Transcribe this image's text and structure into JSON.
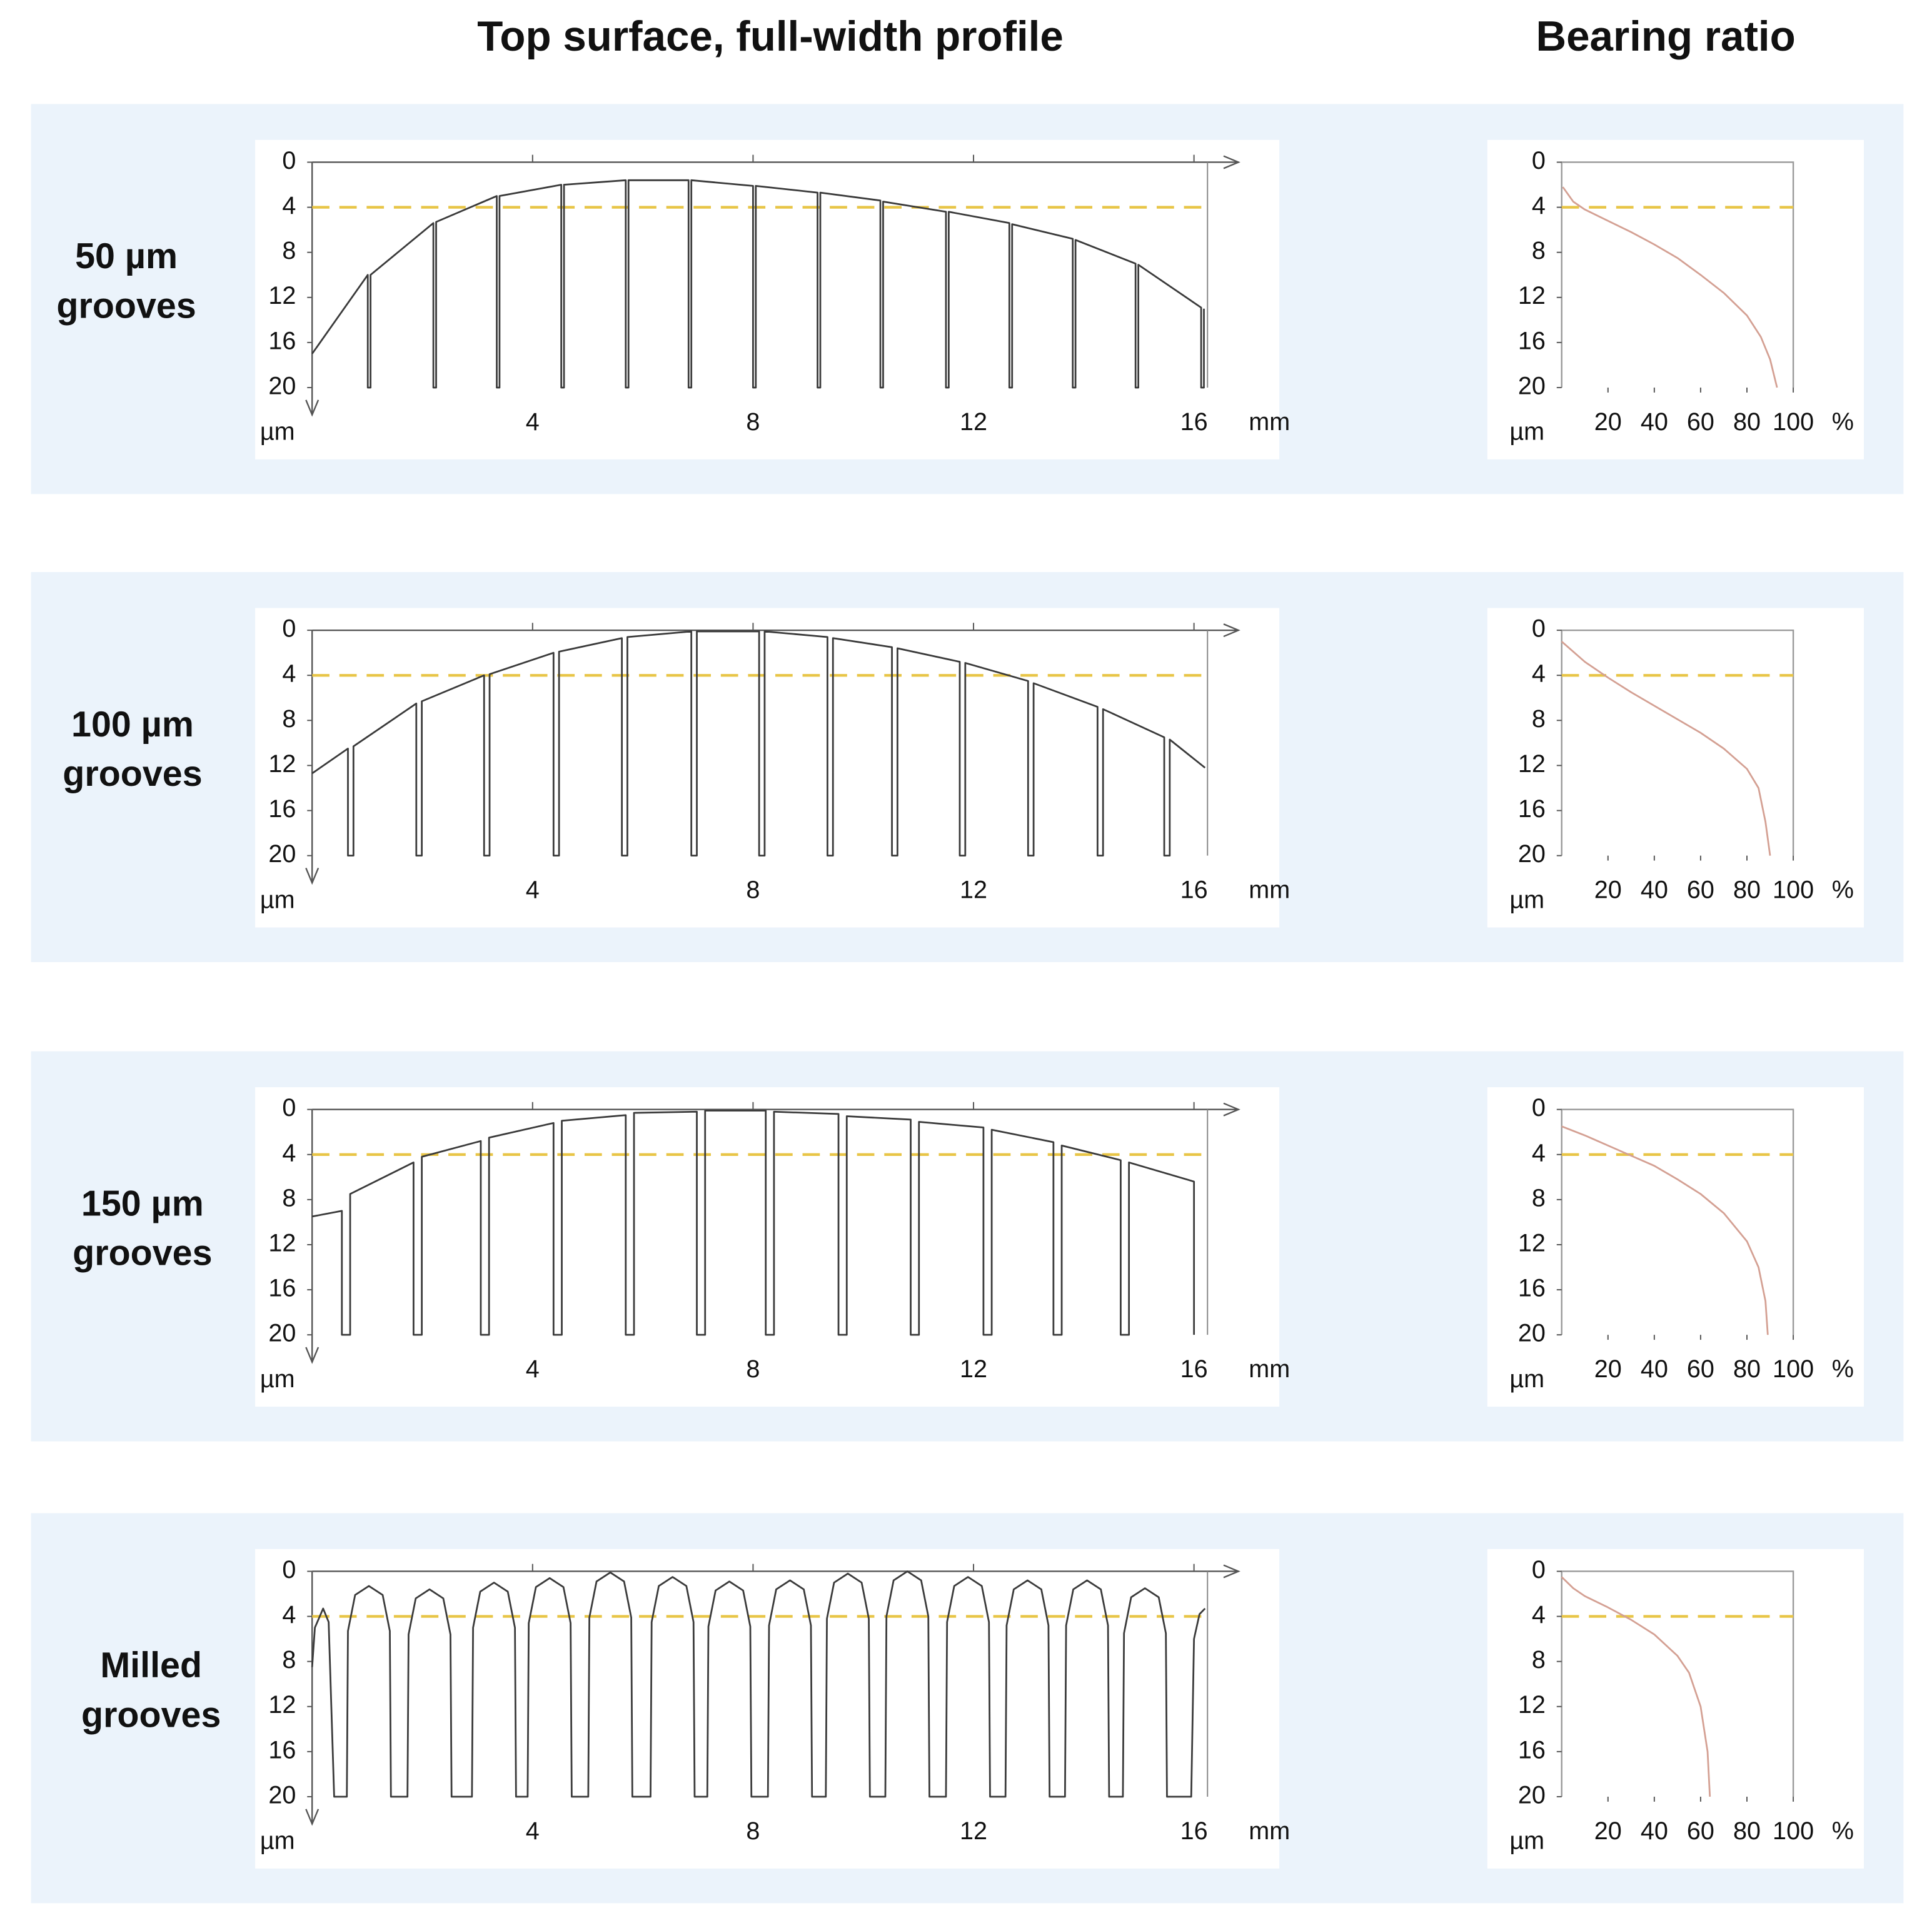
{
  "headers": {
    "profile": "Top surface, full-width profile",
    "bearing": "Bearing ratio"
  },
  "rows": [
    [
      "50 µm",
      "grooves"
    ],
    [
      "100 µm",
      "grooves"
    ],
    [
      "150 µm",
      "grooves"
    ],
    [
      "Milled",
      "grooves"
    ]
  ],
  "chart_data": [
    {
      "type": "line",
      "xlim": [
        0,
        16.2
      ],
      "ylim": [
        0,
        20
      ],
      "y_inverted": true,
      "xticks": [
        4,
        8,
        12,
        16
      ],
      "yticks": [
        0,
        4,
        8,
        12,
        16,
        20
      ],
      "xlabel": "mm",
      "ylabel": "µm",
      "reference_line": {
        "value": 4,
        "color": "#e8c547",
        "dashed": true
      },
      "x": [
        0,
        1.01,
        1.01,
        1.06,
        1.06,
        2.2,
        2.2,
        2.25,
        2.25,
        3.35,
        3.35,
        3.4,
        3.4,
        4.52,
        4.52,
        4.57,
        4.57,
        5.69,
        5.69,
        5.74,
        5.74,
        6.83,
        6.83,
        6.88,
        6.88,
        8.0,
        8.0,
        8.05,
        8.05,
        9.17,
        9.17,
        9.22,
        9.22,
        10.31,
        10.31,
        10.36,
        10.36,
        11.5,
        11.5,
        11.55,
        11.55,
        12.65,
        12.65,
        12.7,
        12.7,
        13.8,
        13.8,
        13.85,
        13.85,
        14.94,
        14.94,
        14.99,
        14.99,
        16.13,
        16.13,
        16.18,
        16.18
      ],
      "series": [
        {
          "color": "#3a3a3a",
          "values": [
            17,
            10,
            20,
            20,
            10,
            5.4,
            20,
            20,
            5.3,
            3.0,
            20,
            20,
            3.0,
            2.0,
            20,
            20,
            2.0,
            1.6,
            20,
            20,
            1.6,
            1.6,
            20,
            20,
            1.6,
            2.1,
            20,
            20,
            2.1,
            2.7,
            20,
            20,
            2.7,
            3.4,
            20,
            20,
            3.5,
            4.4,
            20,
            20,
            4.4,
            5.4,
            20,
            20,
            5.5,
            6.8,
            20,
            20,
            6.9,
            9.0,
            20,
            20,
            9.1,
            12.9,
            20,
            20,
            13.0
          ]
        }
      ]
    },
    {
      "type": "line",
      "xlim": [
        0,
        100
      ],
      "ylim": [
        0,
        20
      ],
      "y_inverted": true,
      "xticks": [
        20,
        40,
        60,
        80,
        100
      ],
      "yticks": [
        0,
        4,
        8,
        12,
        16,
        20
      ],
      "xlabel": "%",
      "ylabel": "µm",
      "reference_line": {
        "value": 4,
        "color": "#e8c547",
        "dashed": true
      },
      "x": [
        0.5,
        5,
        10,
        20,
        30,
        40,
        50,
        60,
        70,
        80,
        86,
        90,
        93
      ],
      "series": [
        {
          "color": "#d4a093",
          "values": [
            2.2,
            3.5,
            4.2,
            5.2,
            6.2,
            7.3,
            8.5,
            10,
            11.6,
            13.6,
            15.5,
            17.5,
            20
          ]
        }
      ]
    },
    {
      "type": "line",
      "xlim": [
        0,
        16.2
      ],
      "ylim": [
        0,
        20
      ],
      "y_inverted": true,
      "xticks": [
        4,
        8,
        12,
        16
      ],
      "yticks": [
        0,
        4,
        8,
        12,
        16,
        20
      ],
      "xlabel": "mm",
      "ylabel": "µm",
      "reference_line": {
        "value": 4,
        "color": "#e8c547",
        "dashed": true
      },
      "x": [
        0,
        0.65,
        0.65,
        0.75,
        0.75,
        1.89,
        1.89,
        1.99,
        1.99,
        3.12,
        3.12,
        3.22,
        3.22,
        4.38,
        4.38,
        4.48,
        4.48,
        5.62,
        5.62,
        5.72,
        5.72,
        6.88,
        6.88,
        6.98,
        6.98,
        8.11,
        8.11,
        8.21,
        8.21,
        9.35,
        9.35,
        9.45,
        9.45,
        10.52,
        10.52,
        10.62,
        10.62,
        11.75,
        11.75,
        11.85,
        11.85,
        12.99,
        12.99,
        13.09,
        13.09,
        14.25,
        14.25,
        14.35,
        14.35,
        15.46,
        15.46,
        15.56,
        15.56,
        16.2
      ],
      "series": [
        {
          "color": "#3a3a3a",
          "values": [
            12.7,
            10.5,
            20,
            20,
            10.3,
            6.5,
            20,
            20,
            6.3,
            4.0,
            20,
            20,
            3.9,
            2.0,
            20,
            20,
            1.9,
            0.7,
            20,
            20,
            0.6,
            0.1,
            20,
            20,
            0.1,
            0.1,
            20,
            20,
            0.1,
            0.6,
            20,
            20,
            0.7,
            1.5,
            20,
            20,
            1.6,
            2.8,
            20,
            20,
            2.9,
            4.5,
            20,
            20,
            4.7,
            6.8,
            20,
            20,
            7.0,
            9.5,
            20,
            20,
            9.7,
            12.2
          ]
        }
      ]
    },
    {
      "type": "line",
      "xlim": [
        0,
        100
      ],
      "ylim": [
        0,
        20
      ],
      "y_inverted": true,
      "xticks": [
        20,
        40,
        60,
        80,
        100
      ],
      "yticks": [
        0,
        4,
        8,
        12,
        16,
        20
      ],
      "xlabel": "%",
      "ylabel": "µm",
      "reference_line": {
        "value": 4,
        "color": "#e8c547",
        "dashed": true
      },
      "x": [
        0,
        10,
        20,
        30,
        40,
        50,
        60,
        70,
        80,
        85,
        88,
        90
      ],
      "series": [
        {
          "color": "#d4a093",
          "values": [
            1,
            2.8,
            4.2,
            5.5,
            6.7,
            7.9,
            9.1,
            10.5,
            12.3,
            14,
            17,
            20
          ]
        }
      ]
    },
    {
      "type": "line",
      "xlim": [
        0,
        16.2
      ],
      "ylim": [
        0,
        20
      ],
      "y_inverted": true,
      "xticks": [
        4,
        8,
        12,
        16
      ],
      "yticks": [
        0,
        4,
        8,
        12,
        16,
        20
      ],
      "xlabel": "mm",
      "ylabel": "µm",
      "reference_line": {
        "value": 4,
        "color": "#e8c547",
        "dashed": true
      },
      "x": [
        0,
        0.54,
        0.54,
        0.69,
        0.69,
        1.84,
        1.84,
        1.99,
        1.99,
        3.06,
        3.06,
        3.21,
        3.21,
        4.38,
        4.38,
        4.53,
        4.53,
        5.69,
        5.69,
        5.84,
        5.84,
        6.98,
        6.98,
        7.13,
        7.13,
        8.23,
        8.23,
        8.38,
        8.38,
        9.55,
        9.55,
        9.7,
        9.7,
        10.86,
        10.86,
        11.01,
        11.01,
        12.18,
        12.18,
        12.33,
        12.33,
        13.45,
        13.45,
        13.6,
        13.6,
        14.67,
        14.67,
        14.82,
        14.82,
        16.0,
        16.0
      ],
      "series": [
        {
          "color": "#3a3a3a",
          "values": [
            9.5,
            9.0,
            20,
            20,
            7.5,
            4.7,
            20,
            20,
            4.2,
            2.8,
            20,
            20,
            2.5,
            1.2,
            20,
            20,
            1.0,
            0.5,
            20,
            20,
            0.3,
            0.2,
            20,
            20,
            0.1,
            0.1,
            20,
            20,
            0.2,
            0.4,
            20,
            20,
            0.6,
            0.9,
            20,
            20,
            1.1,
            1.6,
            20,
            20,
            1.8,
            2.9,
            20,
            20,
            3.2,
            4.5,
            20,
            20,
            4.7,
            6.4,
            20
          ]
        }
      ]
    },
    {
      "type": "line",
      "xlim": [
        0,
        100
      ],
      "ylim": [
        0,
        20
      ],
      "y_inverted": true,
      "xticks": [
        20,
        40,
        60,
        80,
        100
      ],
      "yticks": [
        0,
        4,
        8,
        12,
        16,
        20
      ],
      "xlabel": "%",
      "ylabel": "µm",
      "reference_line": {
        "value": 4,
        "color": "#e8c547",
        "dashed": true
      },
      "x": [
        0,
        10,
        20,
        30,
        40,
        50,
        60,
        70,
        80,
        85,
        88,
        89
      ],
      "series": [
        {
          "color": "#d4a093",
          "values": [
            1.5,
            2.3,
            3.2,
            4.1,
            5.0,
            6.2,
            7.5,
            9.2,
            11.7,
            14,
            17,
            20
          ]
        }
      ]
    },
    {
      "type": "line",
      "xlim": [
        0,
        16.2
      ],
      "ylim": [
        0,
        20
      ],
      "y_inverted": true,
      "xticks": [
        4,
        8,
        12,
        16
      ],
      "yticks": [
        0,
        4,
        8,
        12,
        16,
        20
      ],
      "xlabel": "mm",
      "ylabel": "µm",
      "reference_line": {
        "value": 4,
        "color": "#e8c547",
        "dashed": true
      },
      "x": [
        0,
        0.05,
        0.2,
        0.3,
        0.4,
        0.63,
        0.65,
        0.78,
        1.03,
        1.28,
        1.41,
        1.43,
        1.73,
        1.75,
        1.88,
        2.13,
        2.38,
        2.51,
        2.53,
        2.9,
        2.92,
        3.05,
        3.3,
        3.55,
        3.68,
        3.7,
        3.91,
        3.93,
        4.06,
        4.31,
        4.56,
        4.69,
        4.71,
        5.01,
        5.03,
        5.16,
        5.41,
        5.66,
        5.79,
        5.81,
        6.14,
        6.16,
        6.29,
        6.54,
        6.79,
        6.92,
        6.94,
        7.17,
        7.19,
        7.32,
        7.57,
        7.82,
        7.95,
        7.97,
        8.27,
        8.29,
        8.42,
        8.67,
        8.92,
        9.05,
        9.07,
        9.32,
        9.34,
        9.47,
        9.72,
        9.97,
        10.1,
        10.12,
        10.4,
        10.42,
        10.55,
        10.8,
        11.05,
        11.18,
        11.2,
        11.5,
        11.52,
        11.65,
        11.9,
        12.15,
        12.28,
        12.3,
        12.58,
        12.6,
        12.73,
        12.98,
        13.23,
        13.36,
        13.38,
        13.66,
        13.68,
        13.81,
        14.06,
        14.31,
        14.44,
        14.46,
        14.71,
        14.73,
        14.86,
        15.11,
        15.36,
        15.49,
        15.51,
        15.95,
        16.0,
        16.1,
        16.2
      ],
      "series": [
        {
          "color": "#3a3a3a",
          "values": [
            8.5,
            5,
            3.3,
            4.5,
            20,
            20,
            5.3,
            2.1,
            1.3,
            2.1,
            5.3,
            20,
            20,
            5.6,
            2.4,
            1.6,
            2.4,
            5.6,
            20,
            20,
            5.0,
            1.8,
            1.0,
            1.8,
            5.0,
            20,
            20,
            4.6,
            1.4,
            0.6,
            1.4,
            4.6,
            20,
            20,
            4.1,
            0.9,
            0.1,
            0.9,
            4.1,
            20,
            20,
            4.5,
            1.3,
            0.5,
            1.3,
            4.5,
            20,
            20,
            4.9,
            1.7,
            0.9,
            1.7,
            4.9,
            20,
            20,
            4.8,
            1.6,
            0.8,
            1.6,
            4.8,
            20,
            20,
            4.2,
            1.0,
            0.2,
            1.0,
            4.2,
            20,
            20,
            4.0,
            0.8,
            0,
            0.8,
            4.0,
            20,
            20,
            4.5,
            1.3,
            0.5,
            1.3,
            4.5,
            20,
            20,
            4.8,
            1.6,
            0.8,
            1.6,
            4.8,
            20,
            20,
            4.8,
            1.6,
            0.8,
            1.6,
            4.8,
            20,
            20,
            5.5,
            2.3,
            1.5,
            2.3,
            5.5,
            20,
            20,
            6,
            3.8,
            3.3
          ]
        }
      ]
    },
    {
      "type": "line",
      "xlim": [
        0,
        100
      ],
      "ylim": [
        0,
        20
      ],
      "y_inverted": true,
      "xticks": [
        20,
        40,
        60,
        80,
        100
      ],
      "yticks": [
        0,
        4,
        8,
        12,
        16,
        20
      ],
      "xlabel": "%",
      "ylabel": "µm",
      "reference_line": {
        "value": 4,
        "color": "#e8c547",
        "dashed": true
      },
      "x": [
        0,
        5,
        10,
        20,
        30,
        40,
        50,
        55,
        60,
        63,
        64
      ],
      "series": [
        {
          "color": "#d4a093",
          "values": [
            0.5,
            1.5,
            2.2,
            3.2,
            4.3,
            5.6,
            7.5,
            9,
            12,
            16,
            20
          ]
        }
      ]
    }
  ]
}
